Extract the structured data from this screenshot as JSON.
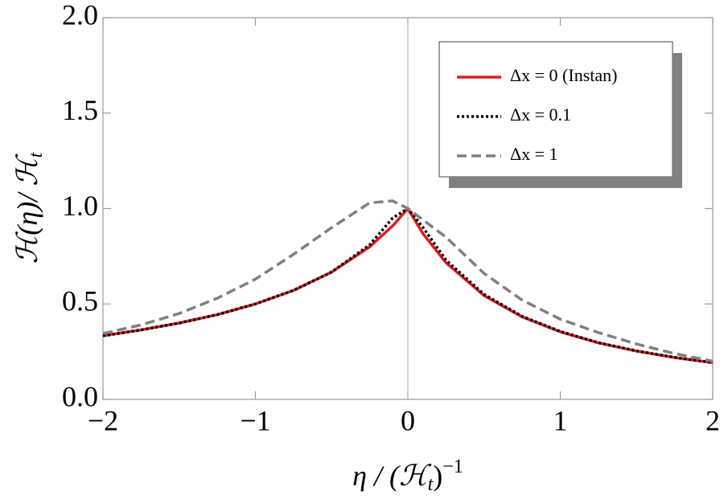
{
  "chart_data": {
    "type": "line",
    "xlabel": [
      "η / (ℋ",
      "t",
      ")",
      "−1"
    ],
    "ylabel": [
      "ℋ(η)/ ℋ",
      "t"
    ],
    "x": [
      -2,
      -1.75,
      -1.5,
      -1.25,
      -1,
      -0.75,
      -0.5,
      -0.25,
      -0.1,
      0,
      0.1,
      0.25,
      0.5,
      0.75,
      1,
      1.25,
      1.5,
      1.75,
      2
    ],
    "series": [
      {
        "name": "Δx = 0 (Instan)",
        "color": "#e31a1c",
        "dash": "solid",
        "values": [
          0.333,
          0.364,
          0.4,
          0.444,
          0.5,
          0.571,
          0.667,
          0.8,
          0.909,
          1,
          0.867,
          0.716,
          0.544,
          0.432,
          0.354,
          0.296,
          0.253,
          0.219,
          0.192
        ]
      },
      {
        "name": "Δx = 0.1",
        "color": "#000000",
        "dash": "dotted",
        "values": [
          0.333,
          0.364,
          0.4,
          0.444,
          0.5,
          0.571,
          0.667,
          0.81,
          0.95,
          1,
          0.9,
          0.73,
          0.55,
          0.435,
          0.356,
          0.297,
          0.254,
          0.22,
          0.193
        ]
      },
      {
        "name": "Δx = 1",
        "color": "#808080",
        "dash": "dashed",
        "values": [
          0.345,
          0.39,
          0.45,
          0.53,
          0.63,
          0.76,
          0.9,
          1.03,
          1.04,
          1,
          0.94,
          0.85,
          0.66,
          0.52,
          0.42,
          0.35,
          0.29,
          0.24,
          0.2
        ]
      }
    ],
    "xlim": [
      -2,
      2
    ],
    "ylim": [
      0,
      2
    ],
    "xticks": [
      {
        "value": -2,
        "label": "−2"
      },
      {
        "value": -1,
        "label": "−1"
      },
      0,
      1,
      2
    ],
    "yticks": [
      {
        "value": 0,
        "label": "0.0"
      },
      {
        "value": 0.5,
        "label": "0.5"
      },
      {
        "value": 1,
        "label": "1.0"
      },
      {
        "value": 1.5,
        "label": "1.5"
      },
      {
        "value": 2,
        "label": "2.0"
      }
    ],
    "legend": "upper right"
  }
}
